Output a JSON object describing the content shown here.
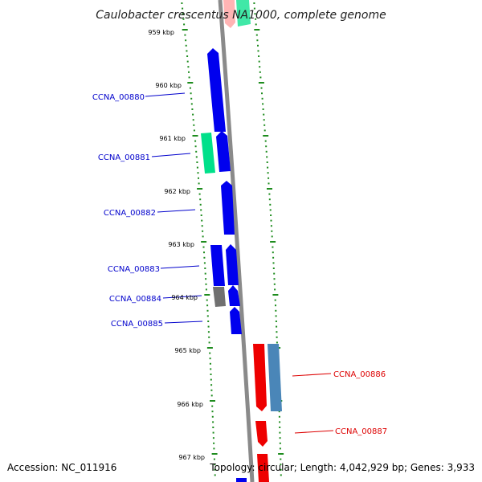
{
  "title": "Caulobacter crescentus NA1000, complete genome",
  "footer": {
    "accession": "Accession: NC_011916",
    "summary": "Topology: circular; Length: 4,042,929 bp; Genes: 3,933"
  },
  "colors": {
    "forward_gene": "#0000ee",
    "reverse_gene": "#ee0000",
    "green_gene": "#00e08a",
    "steelblue_gene": "#4a86b8",
    "gray_gene": "#707070",
    "backbone": "#8a8a8a",
    "tick": "#1e8c1e",
    "label_blue": "#0000cc",
    "label_red": "#dd0000"
  },
  "scale_labels": [
    "959 kbp",
    "960 kbp",
    "961 kbp",
    "962 kbp",
    "963 kbp",
    "964 kbp",
    "965 kbp",
    "966 kbp",
    "967 kbp"
  ],
  "gene_labels": {
    "ccna_00880": "CCNA_00880",
    "ccna_00881": "CCNA_00881",
    "ccna_00882": "CCNA_00882",
    "ccna_00883": "CCNA_00883",
    "ccna_00884": "CCNA_00884",
    "ccna_00885": "CCNA_00885",
    "ccna_00886": "CCNA_00886",
    "ccna_00887": "CCNA_00887"
  }
}
